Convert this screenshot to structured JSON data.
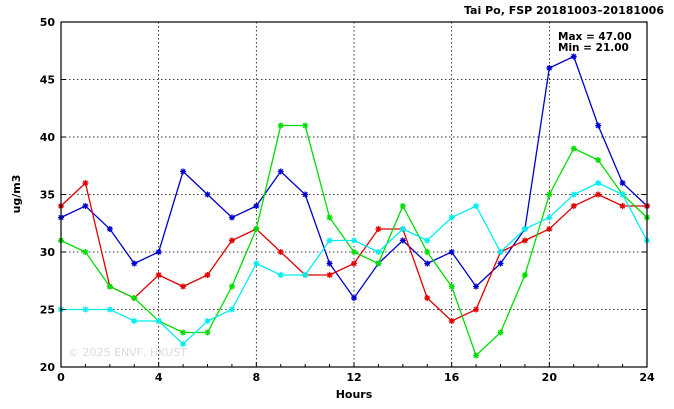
{
  "chart_data": {
    "type": "line",
    "title": "Tai Po, FSP 20181003–20181006",
    "xlabel": "Hours",
    "ylabel": "ug/m3",
    "xlim": [
      0,
      24
    ],
    "ylim": [
      20,
      50
    ],
    "x_ticks": [
      0,
      4,
      8,
      12,
      16,
      20,
      24
    ],
    "y_ticks": [
      20,
      25,
      30,
      35,
      40,
      45,
      50
    ],
    "grid": true,
    "stats": {
      "max_label": "Max = 47.00",
      "min_label": "Min = 21.00"
    },
    "watermark": "© 2025  ENVF, HKUST",
    "x": [
      0,
      1,
      2,
      3,
      4,
      5,
      6,
      7,
      8,
      9,
      10,
      11,
      12,
      13,
      14,
      15,
      16,
      17,
      18,
      19,
      20,
      21,
      22,
      23,
      24
    ],
    "series": [
      {
        "color": "#0000cc",
        "values": [
          33,
          34,
          32,
          29,
          30,
          37,
          35,
          33,
          34,
          37,
          35,
          29,
          26,
          29,
          31,
          29,
          30,
          27,
          29,
          32,
          46,
          47,
          41,
          36,
          34
        ]
      },
      {
        "color": "#e00000",
        "values": [
          34,
          36,
          27,
          26,
          28,
          27,
          28,
          31,
          32,
          30,
          28,
          28,
          29,
          32,
          32,
          26,
          24,
          25,
          30,
          31,
          32,
          34,
          35,
          34,
          34
        ]
      },
      {
        "color": "#00dd00",
        "values": [
          31,
          30,
          27,
          26,
          24,
          23,
          23,
          27,
          32,
          41,
          41,
          33,
          30,
          29,
          34,
          30,
          27,
          21,
          23,
          28,
          35,
          39,
          38,
          35,
          33
        ]
      },
      {
        "color": "#00eeee",
        "values": [
          25,
          25,
          25,
          24,
          24,
          22,
          24,
          25,
          29,
          28,
          28,
          31,
          31,
          30,
          32,
          31,
          33,
          34,
          30,
          32,
          33,
          35,
          36,
          35,
          31
        ]
      }
    ]
  }
}
